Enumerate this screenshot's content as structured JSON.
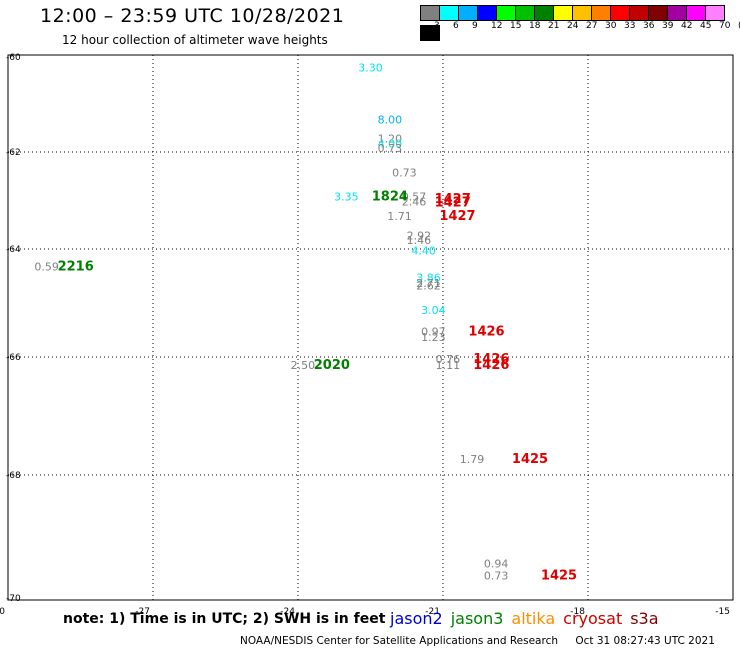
{
  "header": {
    "title": "12:00 – 23:59 UTC 10/28/2021",
    "subtitle": "12 hour collection of altimeter wave heights"
  },
  "color_scale": {
    "labels": [
      "3",
      "6",
      "9",
      "12",
      "15",
      "18",
      "21",
      "24",
      "27",
      "30",
      "33",
      "36",
      "39",
      "42",
      "45",
      "70",
      "(ft)"
    ],
    "colors": [
      "#808080",
      "#00ffff",
      "#00b0ff",
      "#0000ff",
      "#00ff00",
      "#00c000",
      "#008000",
      "#ffff00",
      "#ffc000",
      "#ff8000",
      "#ff0000",
      "#c00000",
      "#800000",
      "#a000a0",
      "#ff00ff",
      "#ff80ff",
      "#000000"
    ]
  },
  "footer": {
    "note": "note: 1) Time is in UTC; 2) SWH is in feet",
    "credit": "NOAA/NESDIS Center for Satellite Applications and Research",
    "timestamp": "Oct 31 08:27:43 UTC 2021"
  },
  "satellites": [
    {
      "name": "jason2",
      "color": "#0000cc"
    },
    {
      "name": "jason3",
      "color": "#008000"
    },
    {
      "name": "altika",
      "color": "#ff8c00"
    },
    {
      "name": "cryosat",
      "color": "#cc0000"
    },
    {
      "name": "s3a",
      "color": "#800000"
    }
  ],
  "chart_data": {
    "type": "scatter",
    "title": "12:00 – 23:59 UTC 10/28/2021",
    "subtitle": "12 hour collection of altimeter wave heights",
    "xlim": [
      -30,
      -15
    ],
    "ylim": [
      -70,
      -60
    ],
    "xticks": [
      -30,
      -27,
      -24,
      -21,
      -18,
      -15
    ],
    "yticks": [
      -60,
      -62,
      -64,
      -66,
      -68,
      -70
    ],
    "xtick_labels": [
      "-30",
      "-27",
      "-24",
      "-21",
      "-18",
      "-15"
    ],
    "ytick_labels": [
      "-60",
      "-62",
      "-64",
      "-66",
      "-68",
      "-70"
    ],
    "grid": true,
    "wave_heights": [
      {
        "lon": -22.5,
        "lat": -60.3,
        "text": "3.30",
        "color": "#00e5ee"
      },
      {
        "lon": -22.1,
        "lat": -61.4,
        "text": "8.00",
        "color": "#00b0ff"
      },
      {
        "lon": -22.1,
        "lat": -61.8,
        "text": "1.20",
        "color": "#808080"
      },
      {
        "lon": -22.1,
        "lat": -61.9,
        "text": "4.00",
        "color": "#00e5ee"
      },
      {
        "lon": -22.1,
        "lat": -62.0,
        "text": "0.73",
        "color": "#808080"
      },
      {
        "lon": -21.8,
        "lat": -62.5,
        "text": "0.73",
        "color": "#808080"
      },
      {
        "lon": -23.0,
        "lat": -63.0,
        "text": "3.35",
        "color": "#00e5ee"
      },
      {
        "lon": -21.6,
        "lat": -63.0,
        "text": "0.57",
        "color": "#808080"
      },
      {
        "lon": -21.6,
        "lat": -63.1,
        "text": "2.46",
        "color": "#808080"
      },
      {
        "lon": -21.9,
        "lat": -63.4,
        "text": "1.71",
        "color": "#808080"
      },
      {
        "lon": -21.5,
        "lat": -63.8,
        "text": "2.92",
        "color": "#808080"
      },
      {
        "lon": -21.5,
        "lat": -63.9,
        "text": "1.46",
        "color": "#808080"
      },
      {
        "lon": -21.4,
        "lat": -64.1,
        "text": "4.40",
        "color": "#00e5ee"
      },
      {
        "lon": -21.3,
        "lat": -64.6,
        "text": "3.86",
        "color": "#00e5ee"
      },
      {
        "lon": -21.3,
        "lat": -64.7,
        "text": "2.71",
        "color": "#808080"
      },
      {
        "lon": -21.3,
        "lat": -64.75,
        "text": "2.62",
        "color": "#808080"
      },
      {
        "lon": -21.2,
        "lat": -65.2,
        "text": "3.04",
        "color": "#00e5ee"
      },
      {
        "lon": -21.2,
        "lat": -65.6,
        "text": "0.97",
        "color": "#808080"
      },
      {
        "lon": -21.2,
        "lat": -65.7,
        "text": "1.23",
        "color": "#808080"
      },
      {
        "lon": -20.9,
        "lat": -66.1,
        "text": "0.76",
        "color": "#808080"
      },
      {
        "lon": -20.9,
        "lat": -66.2,
        "text": "1.11",
        "color": "#808080"
      },
      {
        "lon": -23.9,
        "lat": -66.2,
        "text": "2.50",
        "color": "#808080"
      },
      {
        "lon": -29.2,
        "lat": -64.4,
        "text": "0.59",
        "color": "#808080"
      },
      {
        "lon": -20.4,
        "lat": -67.8,
        "text": "1.79",
        "color": "#808080"
      },
      {
        "lon": -19.9,
        "lat": -69.5,
        "text": "0.94",
        "color": "#808080"
      },
      {
        "lon": -19.9,
        "lat": -69.7,
        "text": "0.73",
        "color": "#808080"
      }
    ],
    "pass_times": [
      {
        "lon": -22.1,
        "lat": -63.0,
        "text": "1824",
        "color": "#008000"
      },
      {
        "lon": -20.8,
        "lat": -63.05,
        "text": "1427",
        "color": "#dd0000"
      },
      {
        "lon": -20.8,
        "lat": -63.12,
        "text": "1427",
        "color": "#dd0000"
      },
      {
        "lon": -20.7,
        "lat": -63.4,
        "text": "1427",
        "color": "#dd0000"
      },
      {
        "lon": -28.6,
        "lat": -64.4,
        "text": "2216",
        "color": "#008000"
      },
      {
        "lon": -20.1,
        "lat": -65.6,
        "text": "1426",
        "color": "#dd0000"
      },
      {
        "lon": -20.0,
        "lat": -66.1,
        "text": "1426",
        "color": "#dd0000"
      },
      {
        "lon": -20.0,
        "lat": -66.2,
        "text": "1426",
        "color": "#dd0000"
      },
      {
        "lon": -23.3,
        "lat": -66.2,
        "text": "2020",
        "color": "#008000"
      },
      {
        "lon": -19.2,
        "lat": -67.8,
        "text": "1425",
        "color": "#dd0000"
      },
      {
        "lon": -18.6,
        "lat": -69.7,
        "text": "1425",
        "color": "#dd0000"
      }
    ]
  }
}
